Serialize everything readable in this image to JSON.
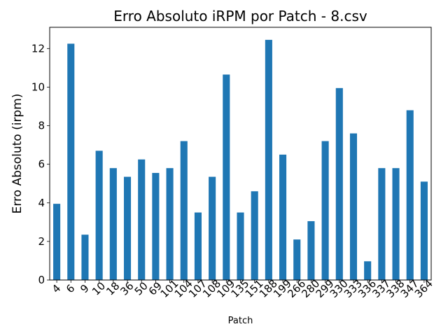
{
  "chart_data": {
    "type": "bar",
    "title": "Erro Absoluto iRPM por Patch - 8.csv",
    "xlabel": "Patch",
    "ylabel": "Erro Absoluto (irpm)",
    "categories": [
      "4",
      "6",
      "9",
      "10",
      "18",
      "36",
      "50",
      "69",
      "101",
      "104",
      "107",
      "108",
      "109",
      "135",
      "151",
      "188",
      "199",
      "266",
      "280",
      "299",
      "330",
      "333",
      "336",
      "337",
      "338",
      "347",
      "364"
    ],
    "values": [
      3.95,
      12.25,
      2.35,
      6.7,
      5.8,
      5.35,
      6.25,
      5.55,
      5.8,
      7.2,
      3.5,
      5.35,
      10.65,
      3.5,
      4.6,
      12.45,
      6.5,
      2.1,
      3.05,
      7.2,
      9.95,
      7.6,
      0.97,
      5.8,
      5.8,
      8.8,
      5.1
    ],
    "ylim": [
      0,
      13.1
    ],
    "yticks": [
      0,
      2,
      4,
      6,
      8,
      10,
      12
    ],
    "bar_color": "#1f77b4",
    "grid": false,
    "legend": false
  }
}
